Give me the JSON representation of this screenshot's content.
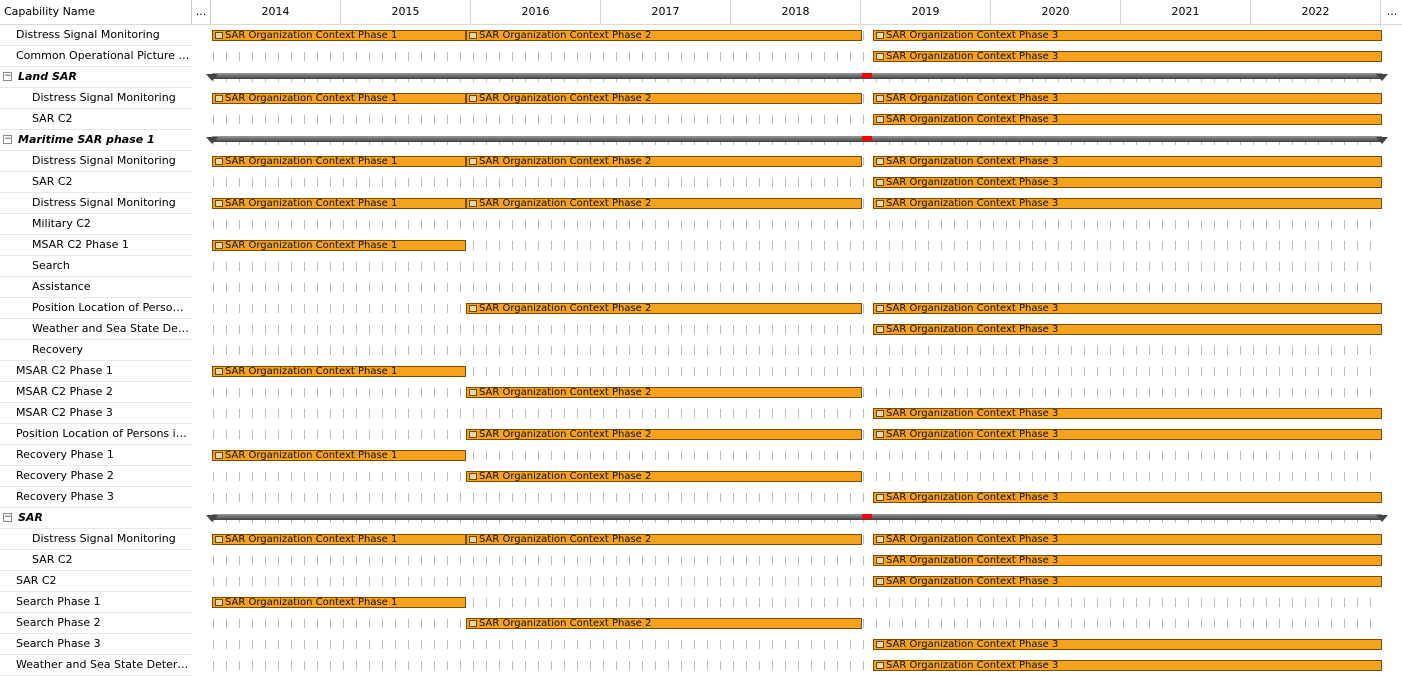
{
  "header": {
    "capability_col": "Capability Name",
    "left_more": "...",
    "right_more": "...",
    "years": [
      "2014",
      "2015",
      "2016",
      "2017",
      "2018",
      "2019",
      "2020",
      "2021",
      "2022"
    ]
  },
  "phases": {
    "p1": "SAR Organization Context Phase 1",
    "p2": "SAR Organization Context Phase 2",
    "p3": "SAR Organization Context Phase 3"
  },
  "rows": [
    {
      "label": "Distress Signal Monitoring",
      "level": 1,
      "bars": [
        "p1",
        "p2",
        "p3"
      ]
    },
    {
      "label": "Common Operational Picture Access",
      "level": 1,
      "bars": [
        "p3"
      ]
    },
    {
      "label": "Land SAR",
      "level": 0,
      "group": true,
      "expanded_symbol": "−"
    },
    {
      "label": "Distress Signal Monitoring",
      "level": 2,
      "bars": [
        "p1",
        "p2",
        "p3"
      ]
    },
    {
      "label": "SAR C2",
      "level": 2,
      "bars": [
        "p3"
      ]
    },
    {
      "label": "Maritime SAR phase 1",
      "level": 0,
      "group": true,
      "expanded_symbol": "−"
    },
    {
      "label": "Distress Signal Monitoring",
      "level": 2,
      "bars": [
        "p1",
        "p2",
        "p3"
      ]
    },
    {
      "label": "SAR C2",
      "level": 2,
      "bars": [
        "p3"
      ]
    },
    {
      "label": "Distress Signal Monitoring",
      "level": 2,
      "bars": [
        "p1",
        "p2",
        "p3"
      ]
    },
    {
      "label": "Military C2",
      "level": 2,
      "bars": []
    },
    {
      "label": "MSAR C2 Phase 1",
      "level": 2,
      "bars": [
        "p1"
      ]
    },
    {
      "label": "Search",
      "level": 2,
      "bars": []
    },
    {
      "label": "Assistance",
      "level": 2,
      "bars": []
    },
    {
      "label": "Position Location of Persons in...",
      "level": 2,
      "bars": [
        "p2",
        "p3"
      ]
    },
    {
      "label": "Weather and Sea State Deter...",
      "level": 2,
      "bars": [
        "p3"
      ]
    },
    {
      "label": "Recovery",
      "level": 2,
      "bars": []
    },
    {
      "label": "MSAR C2 Phase 1",
      "level": 1,
      "bars": [
        "p1"
      ]
    },
    {
      "label": "MSAR C2 Phase 2",
      "level": 1,
      "bars": [
        "p2"
      ]
    },
    {
      "label": "MSAR C2 Phase 3",
      "level": 1,
      "bars": [
        "p3"
      ]
    },
    {
      "label": "Position Location of Persons in Di...",
      "level": 1,
      "bars": [
        "p2",
        "p3"
      ]
    },
    {
      "label": "Recovery Phase 1",
      "level": 1,
      "bars": [
        "p1"
      ]
    },
    {
      "label": "Recovery Phase 2",
      "level": 1,
      "bars": [
        "p2"
      ]
    },
    {
      "label": "Recovery Phase 3",
      "level": 1,
      "bars": [
        "p3"
      ]
    },
    {
      "label": "SAR",
      "level": 0,
      "group": true,
      "expanded_symbol": "−"
    },
    {
      "label": "Distress Signal Monitoring",
      "level": 2,
      "bars": [
        "p1",
        "p2",
        "p3"
      ]
    },
    {
      "label": "SAR C2",
      "level": 2,
      "bars": [
        "p3"
      ]
    },
    {
      "label": "SAR C2",
      "level": 1,
      "bars": [
        "p3"
      ]
    },
    {
      "label": "Search Phase 1",
      "level": 1,
      "bars": [
        "p1"
      ]
    },
    {
      "label": "Search Phase 2",
      "level": 1,
      "bars": [
        "p2"
      ]
    },
    {
      "label": "Search Phase 3",
      "level": 1,
      "bars": [
        "p3"
      ]
    },
    {
      "label": "Weather and Sea State Determin...",
      "level": 1,
      "bars": [
        "p3"
      ]
    }
  ],
  "colors": {
    "bar_fill": "#f6a21e",
    "bar_border": "#7a4b00",
    "today_marker": "#ff0000",
    "summary_bar": "#454545"
  }
}
